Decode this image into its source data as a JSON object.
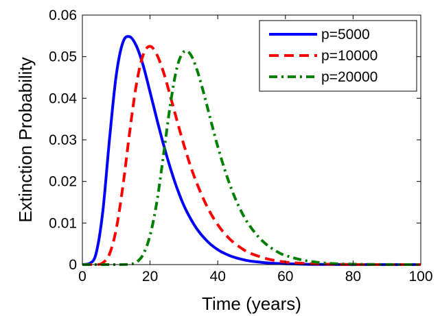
{
  "chart_data": {
    "type": "line",
    "title": "",
    "xlabel": "Time (years)",
    "ylabel": "Extinction Probability",
    "xlim": [
      0,
      100
    ],
    "ylim": [
      0,
      0.06
    ],
    "xticks": [
      0,
      20,
      40,
      60,
      80,
      100
    ],
    "yticks": [
      0,
      0.01,
      0.02,
      0.03,
      0.04,
      0.05,
      0.06
    ],
    "xtick_labels": [
      "0",
      "20",
      "40",
      "60",
      "80",
      "100"
    ],
    "ytick_labels": [
      "0",
      "0.01",
      "0.02",
      "0.03",
      "0.04",
      "0.05",
      "0.06"
    ],
    "grid": false,
    "legend_position": "top-right",
    "series": [
      {
        "name": "p=5000",
        "color": "#0000ff",
        "style": "solid",
        "x": [
          0,
          2,
          4,
          6,
          8,
          10,
          12,
          14,
          16,
          18,
          20,
          22,
          24,
          26,
          28,
          30,
          32,
          34,
          36,
          38,
          40,
          42,
          44,
          46,
          48,
          50,
          55,
          60,
          65,
          70,
          80,
          90,
          100
        ],
        "y": [
          0,
          0.0002,
          0.0025,
          0.0125,
          0.03,
          0.0455,
          0.0535,
          0.0548,
          0.0525,
          0.0478,
          0.0415,
          0.035,
          0.0288,
          0.0232,
          0.0183,
          0.0142,
          0.011,
          0.0084,
          0.0064,
          0.0048,
          0.0036,
          0.0027,
          0.002,
          0.0015,
          0.0011,
          0.0008,
          0.0004,
          0.0002,
          0.0001,
          4e-05,
          1e-05,
          0,
          0
        ]
      },
      {
        "name": "p=10000",
        "color": "#ff0000",
        "style": "dashed",
        "x": [
          0,
          4,
          6,
          8,
          10,
          12,
          14,
          16,
          18,
          20,
          22,
          24,
          26,
          28,
          30,
          32,
          34,
          36,
          38,
          40,
          42,
          44,
          46,
          48,
          50,
          55,
          60,
          65,
          70,
          80,
          90,
          100
        ],
        "y": [
          0,
          0,
          0.0004,
          0.0025,
          0.0085,
          0.019,
          0.032,
          0.0435,
          0.0505,
          0.0525,
          0.0505,
          0.0462,
          0.0405,
          0.0345,
          0.0288,
          0.0236,
          0.0192,
          0.0154,
          0.0122,
          0.0096,
          0.0075,
          0.0058,
          0.0045,
          0.0034,
          0.0026,
          0.0013,
          0.0006,
          0.0003,
          0.00013,
          2e-05,
          0,
          0
        ]
      },
      {
        "name": "p=20000",
        "color": "#008000",
        "style": "dashdot",
        "x": [
          0,
          10,
          14,
          16,
          18,
          20,
          22,
          24,
          26,
          28,
          30,
          32,
          34,
          36,
          38,
          40,
          42,
          44,
          46,
          48,
          50,
          52,
          54,
          56,
          58,
          60,
          65,
          70,
          75,
          80,
          90,
          100
        ],
        "y": [
          0,
          0,
          0.0001,
          0.0006,
          0.0025,
          0.007,
          0.015,
          0.0265,
          0.0385,
          0.0475,
          0.0512,
          0.0505,
          0.0465,
          0.0408,
          0.0345,
          0.0284,
          0.023,
          0.0183,
          0.0144,
          0.0112,
          0.0087,
          0.0067,
          0.0051,
          0.0039,
          0.0029,
          0.0022,
          0.0011,
          0.0005,
          0.0002,
          0.0001,
          2e-05,
          0
        ]
      }
    ]
  }
}
